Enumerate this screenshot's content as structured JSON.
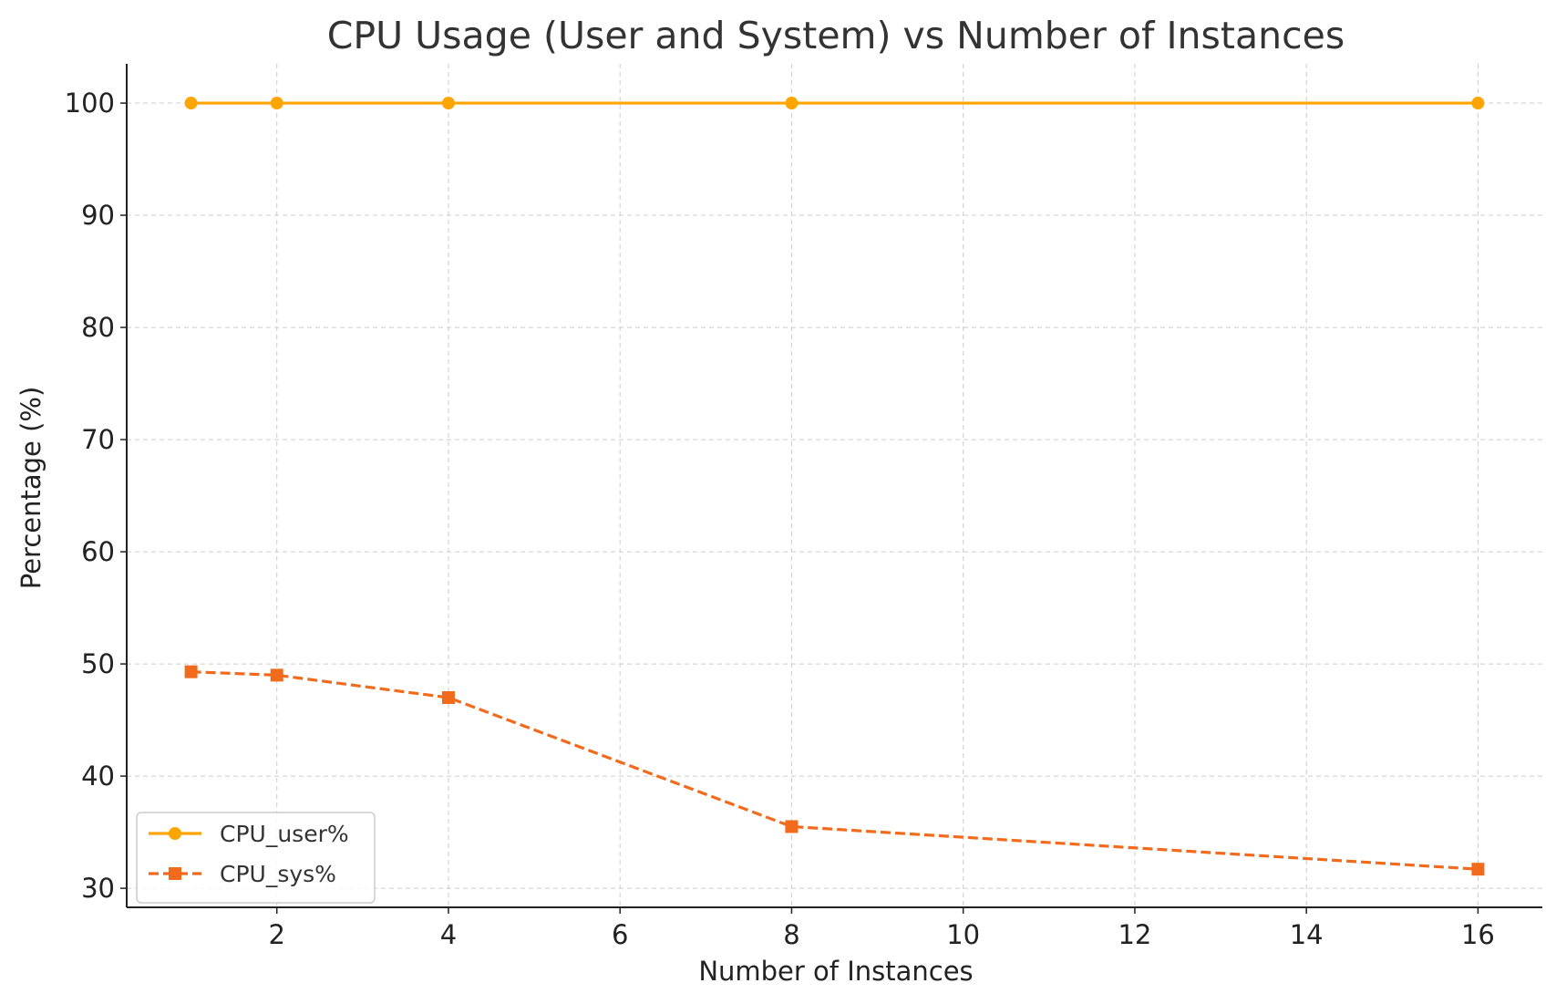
{
  "chart_data": {
    "type": "line",
    "title": "CPU Usage (User and System) vs Number of Instances",
    "xlabel": "Number of Instances",
    "ylabel": "Percentage (%)",
    "x": [
      1,
      2,
      4,
      8,
      16
    ],
    "xlim": [
      0.25,
      16.75
    ],
    "ylim": [
      28.3,
      103.5
    ],
    "xticks": [
      2,
      4,
      6,
      8,
      10,
      12,
      14,
      16
    ],
    "yticks": [
      30,
      40,
      50,
      60,
      70,
      80,
      90,
      100
    ],
    "grid": true,
    "legend_position": "lower-left",
    "series": [
      {
        "name": "CPU_user%",
        "values": [
          100,
          100,
          100,
          100,
          100
        ],
        "color": "#FFA500",
        "line_style": "solid",
        "marker": "circle"
      },
      {
        "name": "CPU_sys%",
        "values": [
          49.3,
          49.0,
          47.0,
          35.5,
          31.7
        ],
        "color": "#F26B1D",
        "line_style": "dashed",
        "marker": "square"
      }
    ]
  }
}
